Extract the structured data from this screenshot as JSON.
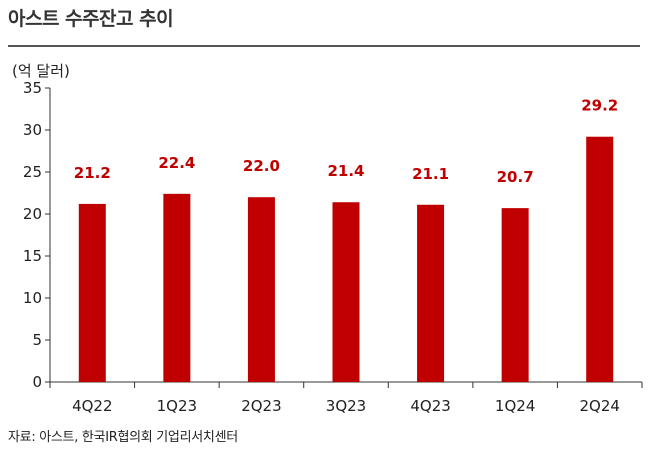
{
  "header": {
    "title": "아스트 수주잔고 추이"
  },
  "footer": {
    "source": "자료: 아스트, 한국IR협의회 기업리서치센터"
  },
  "chart_data": {
    "type": "bar",
    "title": "아스트 수주잔고 추이",
    "unit_label": "(억 달러)",
    "categories": [
      "4Q22",
      "1Q23",
      "2Q23",
      "3Q23",
      "4Q23",
      "1Q24",
      "2Q24"
    ],
    "values": [
      21.2,
      22.4,
      22.0,
      21.4,
      21.1,
      20.7,
      29.2
    ],
    "data_labels": [
      "21.2",
      "22.4",
      "22.0",
      "21.4",
      "21.1",
      "20.7",
      "29.2"
    ],
    "ylim": [
      0,
      35
    ],
    "yticks": [
      0,
      5,
      10,
      15,
      20,
      25,
      30,
      35
    ],
    "grid": false,
    "bar_color": "#c00000",
    "label_color": "#c00000"
  }
}
